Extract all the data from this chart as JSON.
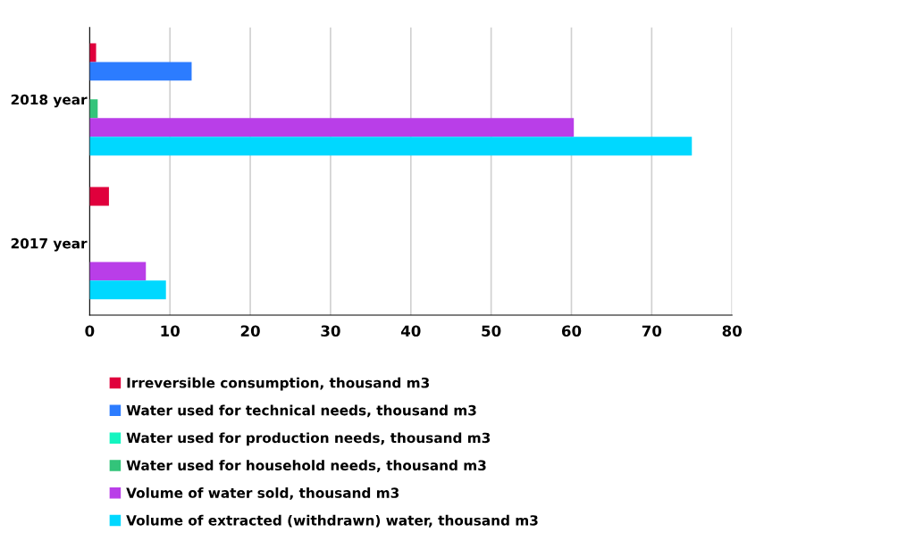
{
  "chart_data": {
    "type": "bar",
    "orientation": "horizontal",
    "categories": [
      "2018 year",
      "2017 year"
    ],
    "series": [
      {
        "name": "Irreversible consumption, thousand m3",
        "color": "#e0003c",
        "values": [
          0.8,
          2.4
        ]
      },
      {
        "name": "Water used for technical needs, thousand m3",
        "color": "#2c7cff",
        "values": [
          12.7,
          null
        ]
      },
      {
        "name": "Water used for production needs, thousand m3",
        "color": "#14f5c0",
        "values": [
          null,
          null
        ]
      },
      {
        "name": "Water used for household needs, thousand m3",
        "color": "#33c47a",
        "values": [
          1.0,
          null
        ]
      },
      {
        "name": "Volume of water sold, thousand m3",
        "color": "#b93ee8",
        "values": [
          60.3,
          7.0
        ]
      },
      {
        "name": "Volume of extracted (withdrawn) water, thousand m3",
        "color": "#00d8ff",
        "values": [
          75.0,
          9.5
        ]
      }
    ],
    "xlim": [
      0,
      80
    ],
    "xticks": [
      0,
      10,
      20,
      30,
      40,
      50,
      60,
      70,
      80
    ],
    "grid": "x",
    "legend": "bottom left"
  }
}
